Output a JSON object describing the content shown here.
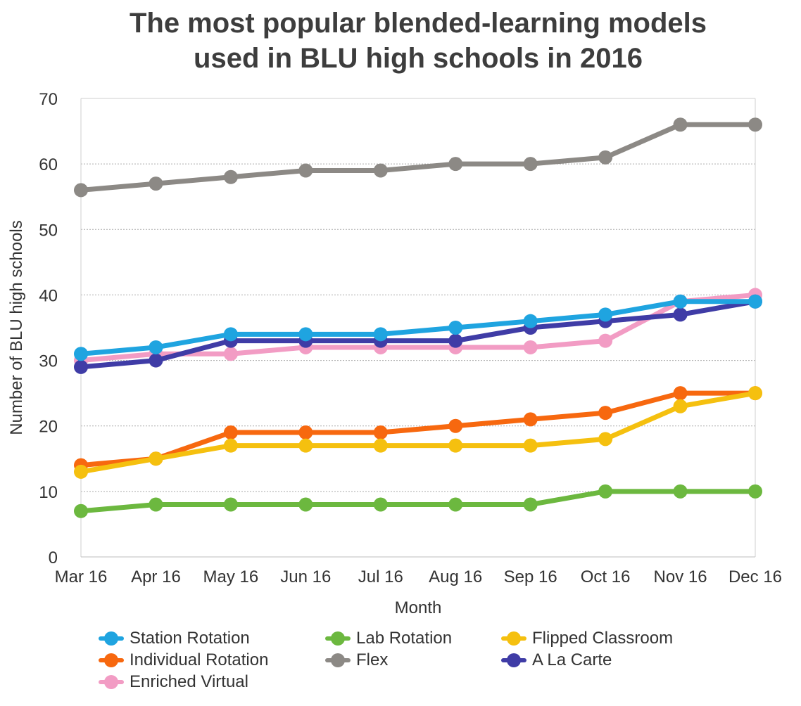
{
  "chart_data": {
    "type": "line",
    "title_lines": [
      "The most popular blended-learning models",
      "used in BLU high schools in 2016"
    ],
    "xlabel": "Month",
    "ylabel": "Number of BLU high schools",
    "categories": [
      "Mar 16",
      "Apr 16",
      "May 16",
      "Jun 16",
      "Jul 16",
      "Aug 16",
      "Sep 16",
      "Oct 16",
      "Nov 16",
      "Dec 16"
    ],
    "ylim": [
      0,
      70
    ],
    "yticks": [
      "0",
      "10",
      "20",
      "30",
      "40",
      "50",
      "60",
      "70"
    ],
    "grid": "horizontal dotted",
    "legend_position": "bottom",
    "series": [
      {
        "name": "Flex",
        "color": "#8c8985",
        "values": [
          56,
          57,
          58,
          59,
          59,
          60,
          60,
          61,
          66,
          66
        ]
      },
      {
        "name": "Lab Rotation",
        "color": "#6cb83f",
        "values": [
          7,
          8,
          8,
          8,
          8,
          8,
          8,
          10,
          10,
          10
        ]
      },
      {
        "name": "Enriched Virtual",
        "color": "#f29cc4",
        "values": [
          30,
          31,
          31,
          32,
          32,
          32,
          32,
          33,
          39,
          40
        ]
      },
      {
        "name": "Individual Rotation",
        "color": "#f7680f",
        "values": [
          14,
          15,
          19,
          19,
          19,
          20,
          21,
          22,
          25,
          25
        ]
      },
      {
        "name": "Flipped Classroom",
        "color": "#f5c00f",
        "values": [
          13,
          15,
          17,
          17,
          17,
          17,
          17,
          18,
          23,
          25
        ]
      },
      {
        "name": "A La Carte",
        "color": "#3f3ca6",
        "values": [
          29,
          30,
          33,
          33,
          33,
          33,
          35,
          36,
          37,
          39
        ]
      },
      {
        "name": "Station Rotation",
        "color": "#1fa4e0",
        "values": [
          31,
          32,
          34,
          34,
          34,
          35,
          36,
          37,
          39,
          39
        ]
      }
    ],
    "legend_order": [
      "Station Rotation",
      "Lab Rotation",
      "Flipped Classroom",
      "Individual Rotation",
      "Flex",
      "A La Carte",
      "Enriched Virtual"
    ]
  }
}
